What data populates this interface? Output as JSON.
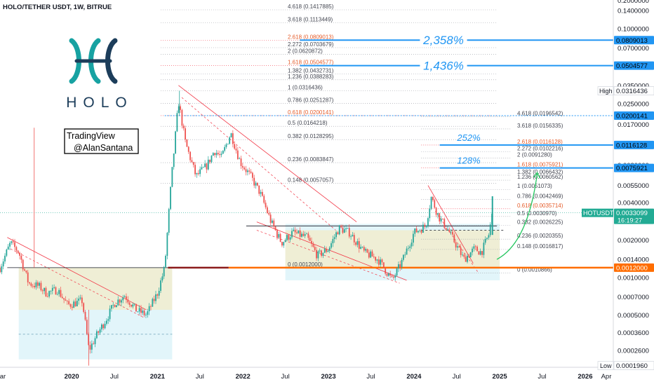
{
  "header": {
    "title": "HOLO/TETHER USDT, 1W, BITRUE"
  },
  "logo": {
    "wordmark": "HOLO",
    "colors": [
      "#17a2a2",
      "#1c3d5a"
    ]
  },
  "watermark": {
    "line1": "TradingView",
    "line2": "@AlanSantana"
  },
  "chart_data": {
    "type": "candlestick",
    "symbol": "HOTUSDT",
    "y_scale": "log",
    "ylim": [
      0.00019,
      0.17
    ],
    "xlim": [
      "2019-03-01",
      "2026-05-01"
    ],
    "x_ticks": [
      {
        "label": "Mar",
        "date": "2019-03-01"
      },
      {
        "label": "2020",
        "date": "2020-01-01",
        "bold": true
      },
      {
        "label": "Jul",
        "date": "2020-07-01"
      },
      {
        "label": "2021",
        "date": "2021-01-01",
        "bold": true
      },
      {
        "label": "Jul",
        "date": "2021-07-01"
      },
      {
        "label": "2022",
        "date": "2022-01-01",
        "bold": true
      },
      {
        "label": "Jul",
        "date": "2022-07-01"
      },
      {
        "label": "2023",
        "date": "2023-01-01",
        "bold": true
      },
      {
        "label": "Jul",
        "date": "2023-07-01"
      },
      {
        "label": "2024",
        "date": "2024-01-01",
        "bold": true
      },
      {
        "label": "Jul",
        "date": "2024-07-01"
      },
      {
        "label": "2025",
        "date": "2025-01-01",
        "bold": true
      },
      {
        "label": "Jul",
        "date": "2025-07-01"
      },
      {
        "label": "2026",
        "date": "2026-01-01",
        "bold": true
      },
      {
        "label": "Apr",
        "date": "2026-04-01"
      }
    ],
    "y_ticks": [
      {
        "label": "0.1400000",
        "v": 0.14
      },
      {
        "label": "0.1000000",
        "v": 0.1
      },
      {
        "label": "0.0700000",
        "v": 0.07
      },
      {
        "label": "0.0350000",
        "v": 0.035
      },
      {
        "label": "0.0250000",
        "v": 0.025
      },
      {
        "label": "0.0170000",
        "v": 0.017
      },
      {
        "label": "0.0080000",
        "v": 0.008
      },
      {
        "label": "0.0055000",
        "v": 0.0055
      },
      {
        "label": "0.0040000",
        "v": 0.004
      },
      {
        "label": "0.0020000",
        "v": 0.002
      },
      {
        "label": "0.0014000",
        "v": 0.0014
      },
      {
        "label": "0.0010000",
        "v": 0.001
      },
      {
        "label": "0.0007000",
        "v": 0.0007
      },
      {
        "label": "0.0005000",
        "v": 0.0005
      },
      {
        "label": "0.0003600",
        "v": 0.00036
      },
      {
        "label": "0.0002600",
        "v": 0.00026
      }
    ],
    "price_tags": [
      {
        "label": "0.0809013",
        "v": 0.0809013,
        "color": "#2196f3",
        "text": "#000000"
      },
      {
        "label": "0.0504577",
        "v": 0.0504577,
        "color": "#2196f3",
        "text": "#000000"
      },
      {
        "label": "0.0200141",
        "v": 0.0200141,
        "color": "#2196f3",
        "text": "#000000"
      },
      {
        "label": "0.0116128",
        "v": 0.0116128,
        "color": "#2196f3",
        "text": "#000000"
      },
      {
        "label": "0.0075921",
        "v": 0.0075921,
        "color": "#2196f3",
        "text": "#000000"
      },
      {
        "label": "0.0033099",
        "v": 0.0033099,
        "color": "#22ab94",
        "text": "#ffffff",
        "sub": "16:19:27"
      },
      {
        "label": "0.0012000",
        "v": 0.0012,
        "color": "#ff6d00",
        "text": "#ffffff"
      }
    ],
    "high_tag": {
      "label": "High",
      "value": "0.0316436",
      "v": 0.0316436
    },
    "low_tag": {
      "label": "Low",
      "value": "0.0001960",
      "v": 0.000196
    },
    "symbol_tag": {
      "label": "HOTUSDT"
    },
    "fib_levels": [
      {
        "label": "4.618 (0.1417885)",
        "v": 0.1417885
      },
      {
        "label": "3.618 (0.1113449)",
        "v": 0.1113449
      },
      {
        "label": "2.618 (0.0809013)",
        "v": 0.0809013,
        "accent": true
      },
      {
        "label": "2.272 (0.0703679)",
        "v": 0.0703679
      },
      {
        "label": "2 (0.0620872)",
        "v": 0.0620872
      },
      {
        "label": "1.618 (0.0504577)",
        "v": 0.0504577,
        "accent": true
      },
      {
        "label": "1.382 (0.0432731)",
        "v": 0.0432731
      },
      {
        "label": "1.236 (0.0388283)",
        "v": 0.0388283
      },
      {
        "label": "1 (0.0316436)",
        "v": 0.0316436
      },
      {
        "label": "0.786 (0.0251287)",
        "v": 0.0251287
      },
      {
        "label": "0.618 (0.0200141)",
        "v": 0.0200141,
        "accent": true
      },
      {
        "label": "0.5 (0.0164218)",
        "v": 0.0164218
      },
      {
        "label": "0.382 (0.0128295)",
        "v": 0.0128295
      },
      {
        "label": "0.236 (0.0083847)",
        "v": 0.0083847
      },
      {
        "label": "0.148 (0.0057057)",
        "v": 0.0057057
      },
      {
        "label": "0 (0.0012000)",
        "v": 0.0012
      }
    ],
    "fib_levels_2": [
      {
        "label": "4.618 (0.0196542)",
        "v": 0.0196542
      },
      {
        "label": "3.618 (0.0156335)",
        "v": 0.0156335
      },
      {
        "label": "2.618 (0.0116128)",
        "v": 0.0116128,
        "accent": true
      },
      {
        "label": "2.272 (0.0102216)",
        "v": 0.0102216
      },
      {
        "label": "2 (0.0091280)",
        "v": 0.009128
      },
      {
        "label": "1.618 (0.0075921)",
        "v": 0.0075921,
        "accent": true
      },
      {
        "label": "1.382 (0.0066432)",
        "v": 0.0066432
      },
      {
        "label": "1.236 (0.0060562)",
        "v": 0.0060562
      },
      {
        "label": "1 (0.0051073)",
        "v": 0.0051073
      },
      {
        "label": "0.786 (0.0042469)",
        "v": 0.0042469
      },
      {
        "label": "0.618 (0.0035714)",
        "v": 0.0035714,
        "accent": true
      },
      {
        "label": "0.5 (0.0030970)",
        "v": 0.003097
      },
      {
        "label": "0.382 (0.0026225)",
        "v": 0.0026225
      },
      {
        "label": "0.236 (0.0020355)",
        "v": 0.0020355
      },
      {
        "label": "0.148 (0.0016817)",
        "v": 0.0016817
      },
      {
        "label": "0 (0.0010866)",
        "v": 0.0010866
      }
    ],
    "annotations": [
      {
        "text": "2,358%",
        "v": 0.0809013
      },
      {
        "text": "1,436%",
        "v": 0.0504577
      },
      {
        "text": "252%",
        "v": 0.0116128
      },
      {
        "text": "128%",
        "v": 0.0075921
      }
    ],
    "colors": {
      "up": "#26a69a",
      "down": "#ef5350",
      "accent_fib": "#f23645",
      "target": "#2196f3",
      "support": "#ff6d00",
      "arrow": "#22c55e"
    },
    "price_path": [
      [
        "2019-03-01",
        0.0012
      ],
      [
        "2019-04-15",
        0.0019
      ],
      [
        "2019-05-20",
        0.0016
      ],
      [
        "2019-07-01",
        0.0009
      ],
      [
        "2019-08-15",
        0.00085
      ],
      [
        "2019-09-15",
        0.00075
      ],
      [
        "2019-11-01",
        0.0008
      ],
      [
        "2019-12-15",
        0.0006
      ],
      [
        "2020-02-15",
        0.00065
      ],
      [
        "2020-03-15",
        0.00026
      ],
      [
        "2020-04-15",
        0.00034
      ],
      [
        "2020-06-01",
        0.00048
      ],
      [
        "2020-07-01",
        0.00062
      ],
      [
        "2020-08-15",
        0.00072
      ],
      [
        "2020-10-01",
        0.00055
      ],
      [
        "2020-11-15",
        0.0005
      ],
      [
        "2021-01-01",
        0.00075
      ],
      [
        "2021-02-01",
        0.0012
      ],
      [
        "2021-03-01",
        0.006
      ],
      [
        "2021-04-01",
        0.026
      ],
      [
        "2021-05-01",
        0.012
      ],
      [
        "2021-06-15",
        0.0065
      ],
      [
        "2021-08-01",
        0.008
      ],
      [
        "2021-09-01",
        0.0105
      ],
      [
        "2021-10-01",
        0.0092
      ],
      [
        "2021-11-10",
        0.0145
      ],
      [
        "2021-12-20",
        0.0085
      ],
      [
        "2022-02-01",
        0.0066
      ],
      [
        "2022-03-15",
        0.0048
      ],
      [
        "2022-05-01",
        0.0028
      ],
      [
        "2022-06-15",
        0.0019
      ],
      [
        "2022-08-01",
        0.0023
      ],
      [
        "2022-10-01",
        0.0021
      ],
      [
        "2022-11-15",
        0.0015
      ],
      [
        "2023-01-01",
        0.0017
      ],
      [
        "2023-02-15",
        0.0025
      ],
      [
        "2023-04-01",
        0.0023
      ],
      [
        "2023-06-01",
        0.0016
      ],
      [
        "2023-08-01",
        0.0014
      ],
      [
        "2023-10-01",
        0.00095
      ],
      [
        "2023-11-15",
        0.0014
      ],
      [
        "2024-01-01",
        0.0023
      ],
      [
        "2024-02-20",
        0.0026
      ],
      [
        "2024-03-15",
        0.0044
      ],
      [
        "2024-04-15",
        0.0031
      ],
      [
        "2024-06-01",
        0.0023
      ],
      [
        "2024-08-01",
        0.0014
      ],
      [
        "2024-09-15",
        0.0017
      ],
      [
        "2024-10-15",
        0.0016
      ],
      [
        "2024-11-15",
        0.0022
      ],
      [
        "2024-12-01",
        0.0033
      ]
    ]
  }
}
